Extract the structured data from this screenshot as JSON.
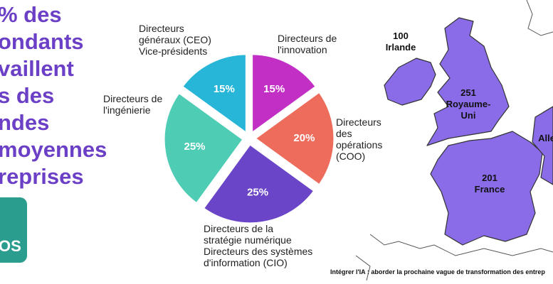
{
  "headline": [
    "% des",
    "ondants",
    "vaillent",
    "s des",
    "ndes",
    "moyennes",
    "reprises"
  ],
  "logo_text": "OS",
  "chart_data": {
    "type": "pie",
    "categories": [
      "Directeurs de\nl'innovation",
      "Directeurs\ndes\nopérations\n(COO)",
      "Directeurs de la\nstratégie numérique\nDirecteurs des systèmes\nd'information (CIO)",
      "Directeurs de\nl'ingénierie",
      "Directeurs\ngénéraux (CEO)\nVice-présidents"
    ],
    "values": [
      15,
      20,
      25,
      25,
      15
    ],
    "value_labels": [
      "15%",
      "20%",
      "25%",
      "25%",
      "15%"
    ],
    "colors": [
      "#c22fc4",
      "#ee6c5c",
      "#6a45c7",
      "#4fccb4",
      "#27b5d8"
    ]
  },
  "map": {
    "labels": [
      {
        "value": "100",
        "name": "Irlande"
      },
      {
        "value": "251",
        "name": "Royaume-\nUni"
      },
      {
        "value": "201",
        "name": "France"
      },
      {
        "value": "",
        "name": "Alle"
      }
    ]
  },
  "footer": "Intégrer l'IA : aborder la prochaine vague de transformation des entrep"
}
